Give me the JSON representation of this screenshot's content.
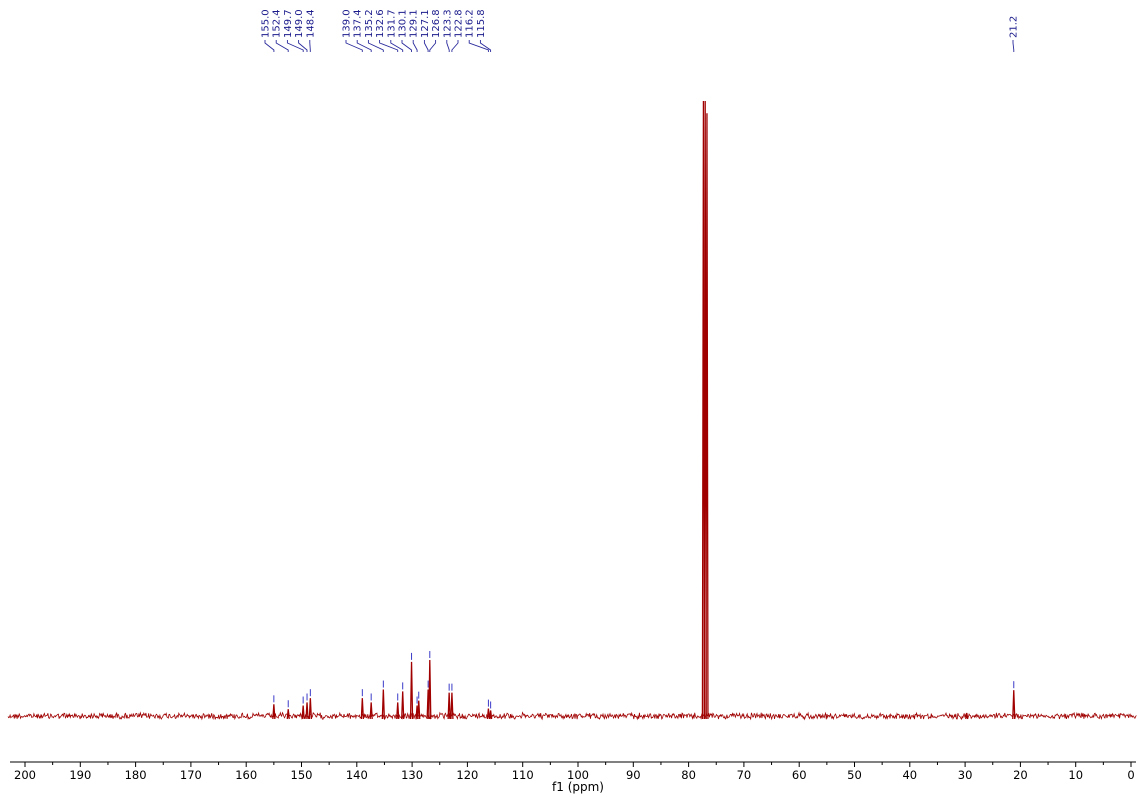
{
  "chart_data": {
    "type": "line",
    "title": "",
    "xlabel": "f1 (ppm)",
    "ylabel": "",
    "x_reversed": true,
    "xlim": [
      0,
      202
    ],
    "x_ticks": [
      200,
      190,
      180,
      170,
      160,
      150,
      140,
      130,
      120,
      110,
      100,
      90,
      80,
      70,
      60,
      50,
      40,
      30,
      20,
      10,
      0
    ],
    "x_tick_labels": [
      "200",
      "190",
      "180",
      "170",
      "160",
      "150",
      "140",
      "130",
      "120",
      "110",
      "100",
      "90",
      "80",
      "70",
      "60",
      "50",
      "40",
      "30",
      "20",
      "10",
      "0"
    ],
    "grid": false,
    "legend": "none",
    "series_color": "#a00000",
    "label_color": "#1a1a8c",
    "peak_labels": [
      {
        "group": 1,
        "labels": [
          "155.0",
          "152.4",
          "149.7",
          "149.0",
          "148.4"
        ]
      },
      {
        "group": 2,
        "labels": [
          "139.0",
          "137.4",
          "135.2",
          "132.6",
          "131.7",
          "130.1",
          "129.1",
          "127.1",
          "126.8",
          "123.3",
          "122.8",
          "116.2",
          "115.8"
        ]
      },
      {
        "group": 3,
        "labels": [
          "21.2"
        ]
      }
    ],
    "peaks": [
      {
        "ppm": 155.0,
        "height": 0.019
      },
      {
        "ppm": 152.4,
        "height": 0.011
      },
      {
        "ppm": 149.7,
        "height": 0.017
      },
      {
        "ppm": 149.0,
        "height": 0.022
      },
      {
        "ppm": 148.4,
        "height": 0.029
      },
      {
        "ppm": 139.0,
        "height": 0.029
      },
      {
        "ppm": 137.4,
        "height": 0.022
      },
      {
        "ppm": 135.2,
        "height": 0.043
      },
      {
        "ppm": 132.6,
        "height": 0.022
      },
      {
        "ppm": 131.7,
        "height": 0.04
      },
      {
        "ppm": 130.1,
        "height": 0.088
      },
      {
        "ppm": 129.1,
        "height": 0.017
      },
      {
        "ppm": 128.8,
        "height": 0.025
      },
      {
        "ppm": 127.1,
        "height": 0.043
      },
      {
        "ppm": 126.8,
        "height": 0.091
      },
      {
        "ppm": 123.3,
        "height": 0.038
      },
      {
        "ppm": 122.8,
        "height": 0.038
      },
      {
        "ppm": 116.2,
        "height": 0.012
      },
      {
        "ppm": 115.8,
        "height": 0.009
      },
      {
        "ppm": 77.32,
        "height": 1.0
      },
      {
        "ppm": 77.0,
        "height": 1.0
      },
      {
        "ppm": 76.68,
        "height": 0.98
      },
      {
        "ppm": 29.7,
        "height": 0.005
      },
      {
        "ppm": 21.2,
        "height": 0.042
      }
    ]
  }
}
